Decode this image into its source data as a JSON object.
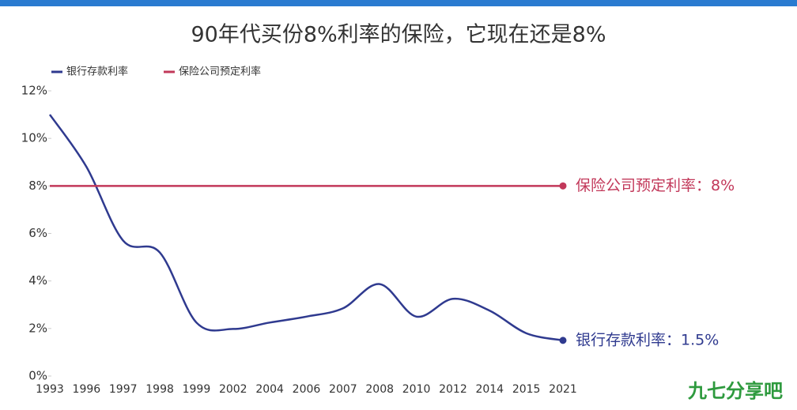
{
  "chart_data": {
    "type": "line",
    "title": "90年代买份8%利率的保险，它现在还是8%",
    "categories": [
      "1993",
      "1996",
      "1997",
      "1998",
      "1999",
      "2002",
      "2004",
      "2006",
      "2007",
      "2008",
      "2010",
      "2012",
      "2014",
      "2015",
      "2021"
    ],
    "series": [
      {
        "name": "银行存款利率",
        "color": "#2f3a8f",
        "values": [
          11,
          8.8,
          5.7,
          5.2,
          2.25,
          1.98,
          2.25,
          2.5,
          2.85,
          3.87,
          2.5,
          3.25,
          2.75,
          1.8,
          1.5
        ],
        "end_label": "银行存款利率：1.5%"
      },
      {
        "name": "保险公司预定利率",
        "color": "#c2385a",
        "values": [
          8,
          8,
          8,
          8,
          8,
          8,
          8,
          8,
          8,
          8,
          8,
          8,
          8,
          8,
          8
        ],
        "end_label": "保险公司预定利率：8%"
      }
    ],
    "ylim": [
      0,
      12
    ],
    "yticks": [
      {
        "value": 0,
        "label": "0%"
      },
      {
        "value": 2,
        "label": "2%"
      },
      {
        "value": 4,
        "label": "4%"
      },
      {
        "value": 6,
        "label": "6%"
      },
      {
        "value": 8,
        "label": "8%"
      },
      {
        "value": 10,
        "label": "10%"
      },
      {
        "value": 12,
        "label": "12%"
      }
    ],
    "legend": "top-left",
    "watermark": "九七分享吧"
  }
}
